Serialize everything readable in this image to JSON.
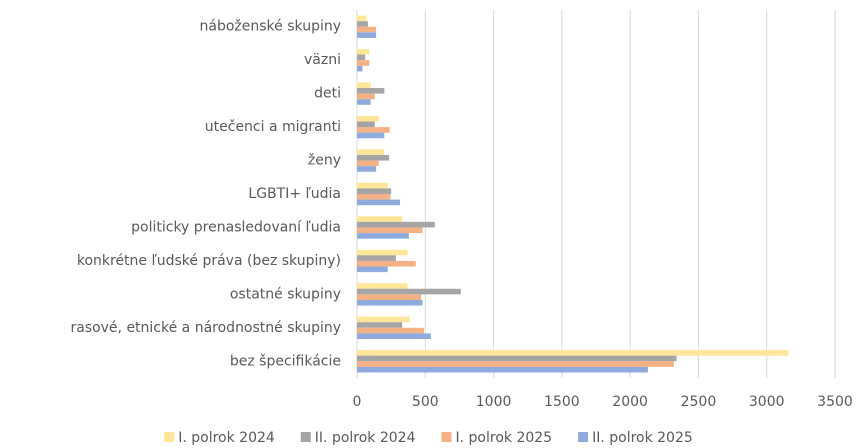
{
  "chart_data": {
    "type": "hbar",
    "categories": [
      "náboženské skupiny",
      "väzni",
      "deti",
      "utečenci a migranti",
      "ženy",
      "LGBTI+ ľudia",
      "politicky prenasledovaní ľudia",
      "konkrétne ľudské práva (bez skupiny)",
      "ostatné skupiny",
      "rasové, etnické a národnostné skupiny",
      "bez špecifikácie"
    ],
    "series": [
      {
        "name": "I. polrok 2024",
        "color": "#ffe699",
        "values": [
          70,
          90,
          100,
          160,
          200,
          225,
          330,
          370,
          370,
          385,
          3160
        ]
      },
      {
        "name": "II. polrok 2024",
        "color": "#a5a5a5",
        "values": [
          80,
          60,
          200,
          130,
          235,
          250,
          570,
          285,
          760,
          330,
          2340
        ]
      },
      {
        "name": "I. polrok 2025",
        "color": "#f4b183",
        "values": [
          140,
          90,
          130,
          240,
          160,
          245,
          480,
          430,
          470,
          490,
          2320
        ]
      },
      {
        "name": "II. polrok 2025",
        "color": "#8faadc",
        "values": [
          140,
          40,
          100,
          200,
          140,
          315,
          380,
          225,
          480,
          540,
          2130
        ]
      }
    ],
    "xlim": [
      0,
      3500
    ],
    "xticks": [
      0,
      500,
      1000,
      1500,
      2000,
      2500,
      3000,
      3500
    ],
    "grid": true,
    "legend": "bottom"
  }
}
